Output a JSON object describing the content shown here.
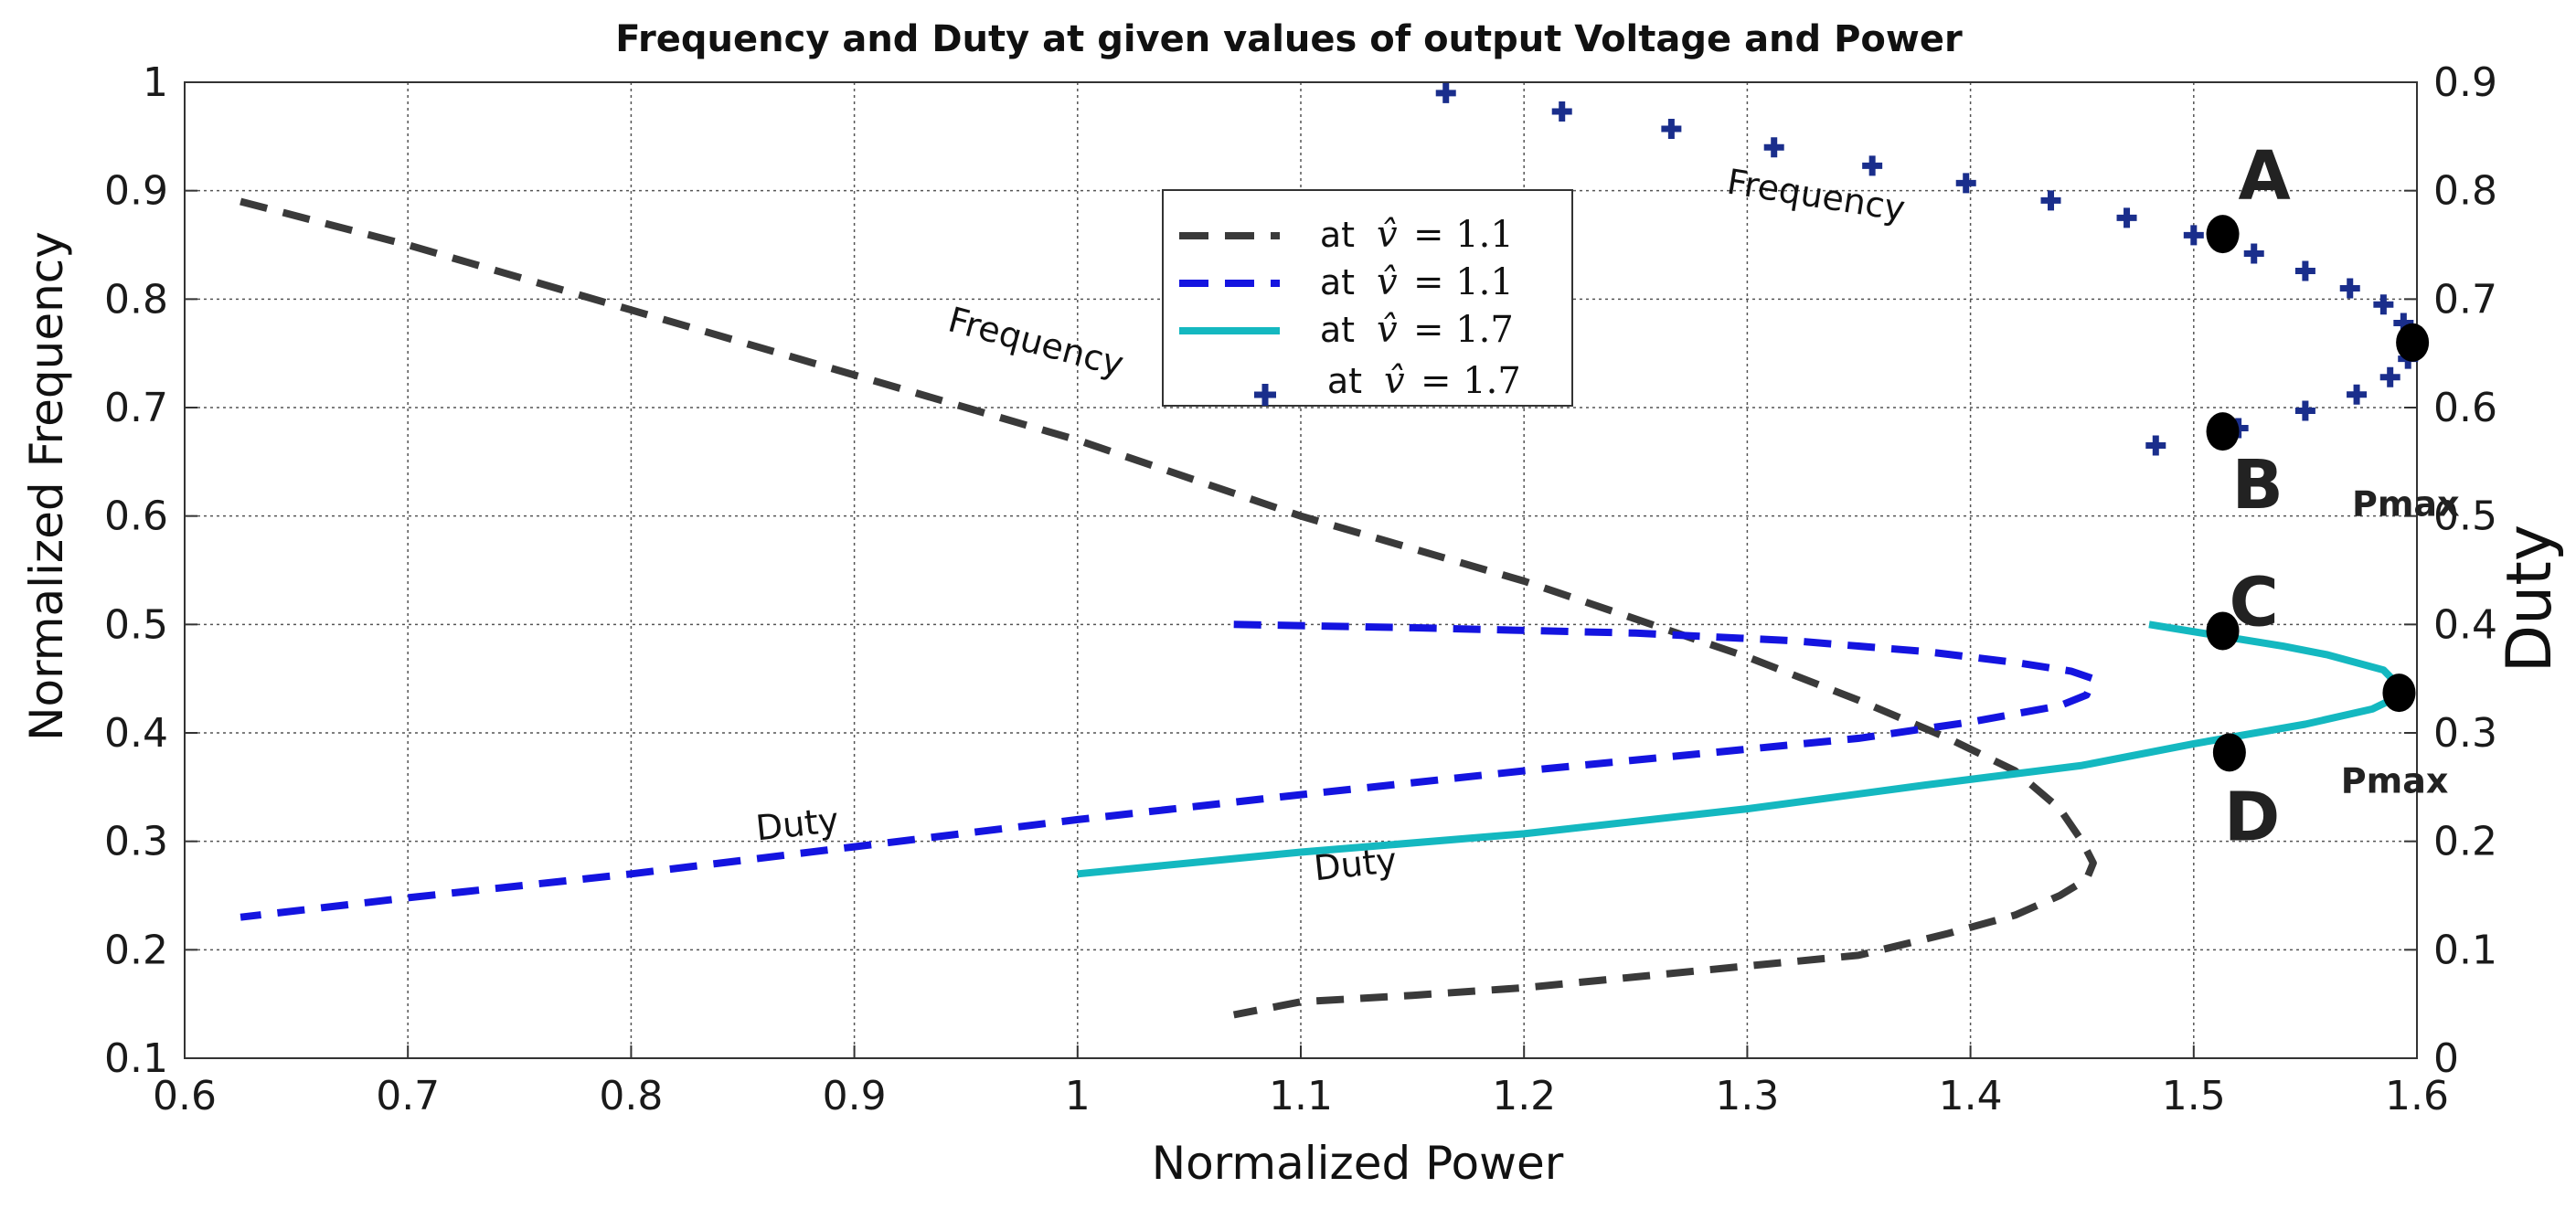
{
  "chart_data": {
    "type": "line",
    "title": "Frequency and Duty at given values of output Voltage and Power",
    "xlabel": "Normalized Power",
    "ylabel": "Normalized Frequency",
    "y2label": "Duty",
    "xlim": [
      0.6,
      1.6
    ],
    "ylim": [
      0.1,
      1.0
    ],
    "y2lim": [
      0.0,
      0.9
    ],
    "grid": true,
    "xticks": [
      "0.6",
      "0.7",
      "0.8",
      "0.9",
      "1",
      "1.1",
      "1.2",
      "1.3",
      "1.4",
      "1.5",
      "1.6"
    ],
    "yticks": [
      "0.1",
      "0.2",
      "0.3",
      "0.4",
      "0.5",
      "0.6",
      "0.7",
      "0.8",
      "0.9",
      "1"
    ],
    "y2ticks": [
      "0",
      "0.1",
      "0.2",
      "0.3",
      "0.4",
      "0.5",
      "0.6",
      "0.7",
      "0.8",
      "0.9"
    ],
    "legend": {
      "position": "upper-center",
      "entries": [
        {
          "prefix": "at",
          "symbol": "v̂",
          "eq": "= 1.1",
          "style": "dashed",
          "color": "#3a3a3a"
        },
        {
          "prefix": "at",
          "symbol": "v̂",
          "eq": "= 1.1",
          "style": "dashed",
          "color": "#1414e0"
        },
        {
          "prefix": "at",
          "symbol": "v̂",
          "eq": "= 1.7",
          "style": "solid",
          "color": "#14b8c0"
        },
        {
          "prefix": "at",
          "symbol": "v̂",
          "eq": "= 1.7",
          "style": "plus",
          "color": "#1a2e8c"
        }
      ]
    },
    "series": [
      {
        "name": "Frequency at v=1.1",
        "axis": "left",
        "style": "dashed",
        "color": "#3a3a3a",
        "x": [
          0.625,
          0.7,
          0.8,
          0.9,
          1.0,
          1.1,
          1.2,
          1.3,
          1.35,
          1.39,
          1.42,
          1.44,
          1.45,
          1.455,
          1.452,
          1.44,
          1.42,
          1.39,
          1.35,
          1.3,
          1.25,
          1.2,
          1.15,
          1.1,
          1.07
        ],
        "y": [
          0.89,
          0.85,
          0.79,
          0.73,
          0.67,
          0.6,
          0.54,
          0.47,
          0.43,
          0.395,
          0.365,
          0.33,
          0.3,
          0.28,
          0.265,
          0.25,
          0.232,
          0.215,
          0.195,
          0.185,
          0.175,
          0.165,
          0.158,
          0.152,
          0.14
        ]
      },
      {
        "name": "Duty at v=1.1",
        "axis": "right",
        "style": "dashed",
        "color": "#1414e0",
        "x": [
          1.07,
          1.15,
          1.25,
          1.32,
          1.38,
          1.42,
          1.445,
          1.455,
          1.452,
          1.44,
          1.4,
          1.35,
          1.3,
          1.2,
          1.1,
          1.0,
          0.9,
          0.8,
          0.7,
          0.625
        ],
        "y": [
          0.4,
          0.397,
          0.392,
          0.385,
          0.375,
          0.365,
          0.357,
          0.35,
          0.335,
          0.325,
          0.31,
          0.295,
          0.285,
          0.265,
          0.243,
          0.22,
          0.195,
          0.17,
          0.148,
          0.13
        ]
      },
      {
        "name": "Duty at v=1.7",
        "axis": "right",
        "style": "solid",
        "color": "#14b8c0",
        "x": [
          1.0,
          1.1,
          1.2,
          1.3,
          1.38,
          1.45,
          1.5,
          1.55,
          1.58,
          1.595,
          1.585,
          1.56,
          1.54,
          1.51,
          1.48
        ],
        "y": [
          0.17,
          0.19,
          0.207,
          0.23,
          0.252,
          0.27,
          0.29,
          0.308,
          0.322,
          0.337,
          0.358,
          0.372,
          0.38,
          0.39,
          0.4
        ]
      },
      {
        "name": "Frequency at v=1.7",
        "axis": "left",
        "style": "plus",
        "color": "#1a2e8c",
        "x": [
          1.165,
          1.217,
          1.266,
          1.312,
          1.356,
          1.398,
          1.436,
          1.47,
          1.5,
          1.527,
          1.55,
          1.57,
          1.585,
          1.594,
          1.598,
          1.596,
          1.588,
          1.573,
          1.55,
          1.52,
          1.483
        ],
        "y": [
          0.99,
          0.973,
          0.957,
          0.94,
          0.923,
          0.907,
          0.891,
          0.875,
          0.859,
          0.842,
          0.826,
          0.81,
          0.795,
          0.778,
          0.76,
          0.745,
          0.728,
          0.712,
          0.697,
          0.681,
          0.665
        ]
      }
    ],
    "points": [
      {
        "label": "A",
        "x": 1.513,
        "y": 0.86,
        "axis": "left"
      },
      {
        "label": "",
        "x": 1.598,
        "y": 0.76,
        "axis": "left",
        "tag": "Pmax"
      },
      {
        "label": "B",
        "x": 1.513,
        "y": 0.678,
        "axis": "left"
      },
      {
        "label": "C",
        "x": 1.513,
        "y": 0.394,
        "axis": "right"
      },
      {
        "label": "",
        "x": 1.592,
        "y": 0.337,
        "axis": "right",
        "tag": "Pmax"
      },
      {
        "label": "D",
        "x": 1.516,
        "y": 0.282,
        "axis": "right"
      }
    ],
    "annotations": [
      {
        "text": "Frequency",
        "x": 1.33,
        "y": 0.885,
        "axis": "left",
        "angle": 9
      },
      {
        "text": "Frequency",
        "x": 0.98,
        "y": 0.75,
        "axis": "left",
        "angle": 15
      },
      {
        "text": "Duty",
        "x": 0.875,
        "y": 0.305,
        "axis": "left",
        "angle": -6
      },
      {
        "text": "Duty",
        "x": 1.125,
        "y": 0.268,
        "axis": "left",
        "angle": -6
      },
      {
        "text": "Pmax",
        "x": 1.595,
        "y": 0.5,
        "axis": "right"
      },
      {
        "text": "Pmax",
        "x": 1.59,
        "y": 0.245,
        "axis": "right"
      }
    ]
  }
}
